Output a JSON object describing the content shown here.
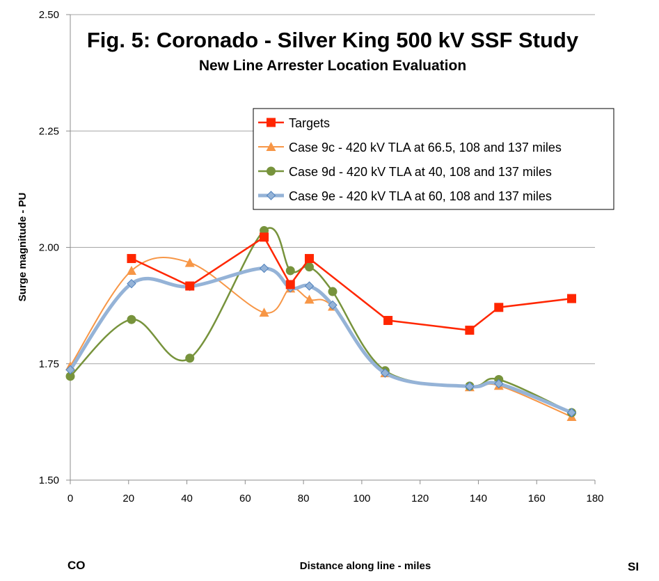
{
  "chart_data": {
    "type": "line",
    "title": "Fig. 5: Coronado - Silver King 500 kV SSF Study",
    "subtitle": "New  Line Arrester Location Evaluation",
    "xlabel": "Distance along line - miles",
    "ylabel": "Surge magnitude - PU",
    "x_left_label": "CO",
    "x_right_label": "SI",
    "xlim": [
      0,
      180
    ],
    "ylim": [
      1.5,
      2.5
    ],
    "x_ticks": [
      0,
      20,
      40,
      60,
      80,
      100,
      120,
      140,
      160,
      180
    ],
    "y_ticks": [
      1.5,
      1.75,
      2.0,
      2.25,
      2.5
    ],
    "x_tick_labels": [
      "0",
      "20",
      "40",
      "60",
      "80",
      "100",
      "120",
      "140",
      "160",
      "180"
    ],
    "y_tick_labels": [
      "1.50",
      "1.75",
      "2.00",
      "2.25",
      "2.50"
    ],
    "grid": "horizontal",
    "legend_position": "top-right",
    "series": [
      {
        "name": "Targets",
        "color": "#ff2600",
        "marker": "square",
        "smooth": false,
        "x": [
          21,
          41,
          66.5,
          75.5,
          82,
          109,
          137,
          147,
          172
        ],
        "y": [
          1.976,
          1.917,
          2.022,
          1.92,
          1.976,
          1.843,
          1.822,
          1.871,
          1.89
        ]
      },
      {
        "name": "Case 9c - 420 kV TLA at 66.5, 108 and 137 miles",
        "color": "#f79646",
        "marker": "triangle",
        "smooth": true,
        "x": [
          0,
          21,
          41,
          66.5,
          75.5,
          82,
          90,
          108,
          137,
          147,
          172
        ],
        "y": [
          1.745,
          1.95,
          1.967,
          1.86,
          1.912,
          1.888,
          1.873,
          1.73,
          1.7,
          1.703,
          1.636
        ]
      },
      {
        "name": "Case 9d - 420 kV TLA at 40, 108 and 137 miles",
        "color": "#77933c",
        "marker": "circle",
        "smooth": true,
        "x": [
          0,
          21,
          41,
          66.5,
          75.5,
          82,
          90,
          108,
          137,
          147,
          172
        ],
        "y": [
          1.723,
          1.845,
          1.762,
          2.036,
          1.95,
          1.958,
          1.905,
          1.735,
          1.702,
          1.716,
          1.645
        ]
      },
      {
        "name": "Case 9e - 420 kV TLA at 60, 108 and 137 miles",
        "color": "#95b3d7",
        "marker": "diamond",
        "smooth": true,
        "x": [
          0,
          21,
          41,
          66.5,
          75.5,
          82,
          90,
          108,
          137,
          147,
          172
        ],
        "y": [
          1.737,
          1.922,
          1.916,
          1.955,
          1.913,
          1.917,
          1.876,
          1.73,
          1.701,
          1.707,
          1.645
        ]
      }
    ]
  }
}
